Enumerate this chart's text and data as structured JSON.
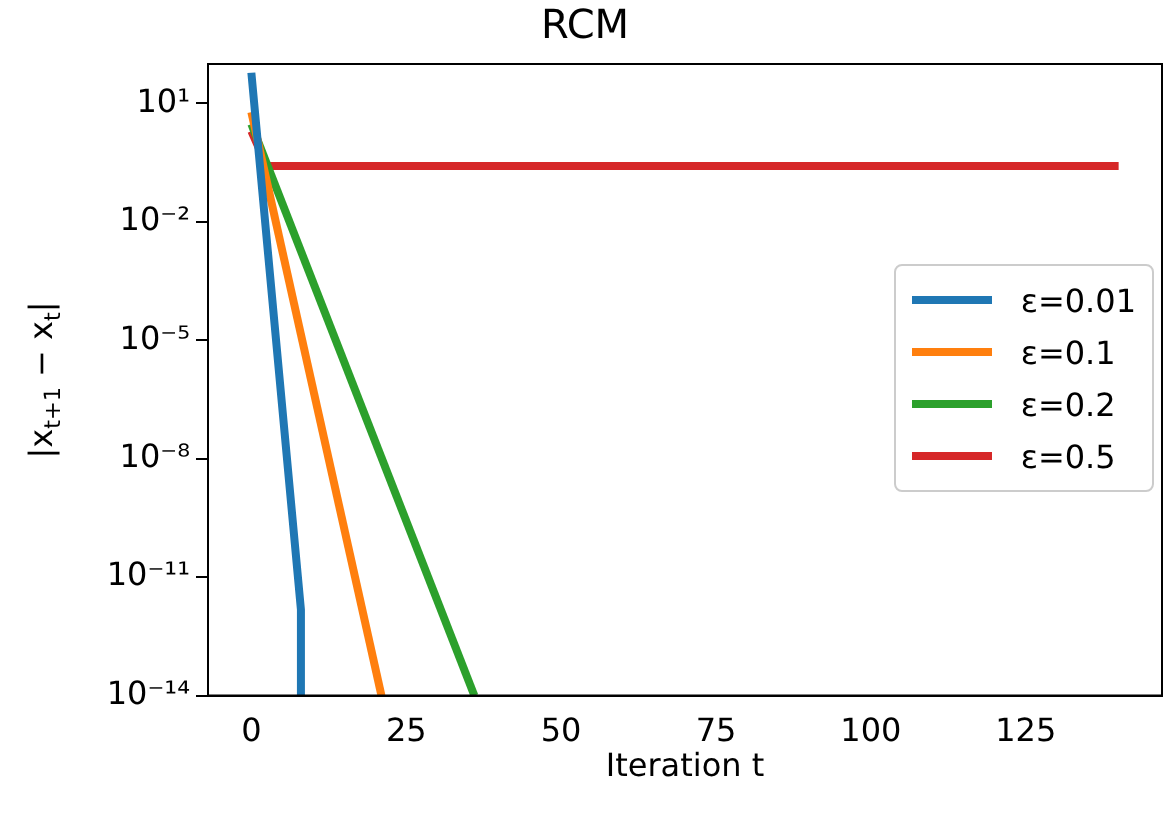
{
  "chart_data": {
    "type": "line",
    "title": "RCM",
    "xlabel": "Iteration t",
    "ylabel": "|x$_{t+1}$ − x$_{t}$|",
    "log": "y",
    "xlim": [
      -7,
      147
    ],
    "xticks": [
      0,
      25,
      50,
      75,
      100,
      125
    ],
    "ylim": [
      1e-14,
      100
    ],
    "yticks": [
      {
        "value": 10,
        "label": "10¹"
      },
      {
        "value": 0.01,
        "label": "10⁻²"
      },
      {
        "value": 1e-05,
        "label": "10⁻⁵"
      },
      {
        "value": 1e-08,
        "label": "10⁻⁸"
      },
      {
        "value": 1e-11,
        "label": "10⁻¹¹"
      },
      {
        "value": 1e-14,
        "label": "10⁻¹⁴"
      }
    ],
    "grid": false,
    "legend": "right",
    "marker": "none",
    "line_style": "solid",
    "series": [
      {
        "name": "ε=0.01",
        "color": "#1f77b4",
        "x": [
          0,
          8,
          8
        ],
        "values": [
          60,
          1.5e-12,
          1e-14
        ]
      },
      {
        "name": "ε=0.1",
        "color": "#ff7f0e",
        "x": [
          0,
          21
        ],
        "values": [
          6,
          1e-14
        ]
      },
      {
        "name": "ε=0.2",
        "color": "#2ca02c",
        "x": [
          0,
          36
        ],
        "values": [
          3,
          1e-14
        ]
      },
      {
        "name": "ε=0.5",
        "color": "#d62728",
        "x": [
          0,
          2.5,
          140
        ],
        "values": [
          2,
          0.26,
          0.26
        ]
      }
    ]
  }
}
